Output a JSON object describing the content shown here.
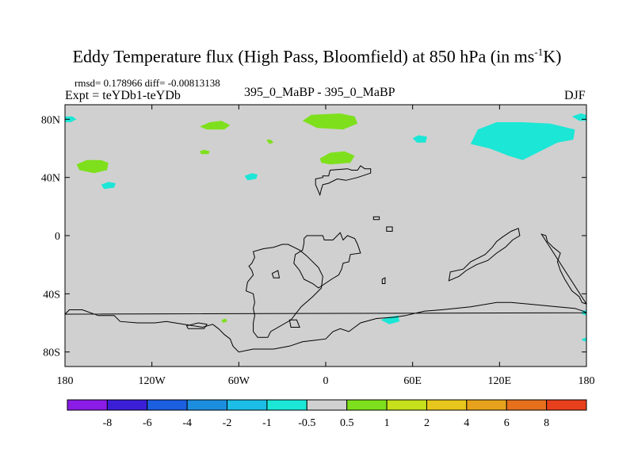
{
  "chart_data": {
    "type": "filled-contour-map",
    "title_main": "Eddy Temperature flux (High Pass, Bloomfield) at 850 hPa (in ms",
    "title_sup": "-1",
    "title_tail": "K)",
    "stats_text": "rmsd= 0.178966 diff= -0.00813138",
    "expt_text": "Expt = teYDb1-teYDb",
    "center_label": "395_0_MaBP - 395_0_MaBP",
    "season": "DJF",
    "x_ticks": [
      {
        "lon": -180,
        "label": "180"
      },
      {
        "lon": -120,
        "label": "120W"
      },
      {
        "lon": -60,
        "label": "60W"
      },
      {
        "lon": 0,
        "label": "0"
      },
      {
        "lon": 60,
        "label": "60E"
      },
      {
        "lon": 120,
        "label": "120E"
      },
      {
        "lon": 180,
        "label": "180"
      }
    ],
    "y_ticks": [
      {
        "lat": 80,
        "label": "80N"
      },
      {
        "lat": 40,
        "label": "40N"
      },
      {
        "lat": 0,
        "label": "0"
      },
      {
        "lat": -40,
        "label": "40S"
      },
      {
        "lat": -80,
        "label": "80S"
      }
    ],
    "xlim": [
      -180,
      180
    ],
    "ylim": [
      -90,
      90
    ],
    "colorbar": {
      "colors": [
        "#8a1ce6",
        "#3a1fd6",
        "#1c5fe0",
        "#1c8ee0",
        "#1cbde6",
        "#1ce6d6",
        "#d0d0d0",
        "#7ee01c",
        "#c6e01c",
        "#e6c61c",
        "#e6a21c",
        "#e6701c",
        "#e6401c"
      ],
      "labels": [
        "-8",
        "-6",
        "-4",
        "-2",
        "-1",
        "-0.5",
        "0.5",
        "1",
        "2",
        "4",
        "6",
        "8"
      ]
    },
    "regions": [
      {
        "name": "green-patch-nw-pacific",
        "color": "#7ee01c",
        "lonlat": [
          [
            -172,
            49
          ],
          [
            -165,
            52
          ],
          [
            -155,
            52
          ],
          [
            -150,
            50
          ],
          [
            -151,
            45
          ],
          [
            -160,
            43
          ],
          [
            -170,
            45
          ]
        ]
      },
      {
        "name": "green-patch-canada",
        "color": "#7ee01c",
        "lonlat": [
          [
            -87,
            75
          ],
          [
            -80,
            78
          ],
          [
            -72,
            79
          ],
          [
            -66,
            76
          ],
          [
            -70,
            73
          ],
          [
            -82,
            73
          ]
        ]
      },
      {
        "name": "green-patch-atlantic",
        "color": "#7ee01c",
        "lonlat": [
          [
            -87,
            58
          ],
          [
            -84,
            59
          ],
          [
            -80,
            58
          ],
          [
            -81,
            56
          ],
          [
            -86,
            56
          ]
        ]
      },
      {
        "name": "green-patch-greenland",
        "color": "#7ee01c",
        "lonlat": [
          [
            -41,
            66
          ],
          [
            -38,
            66
          ],
          [
            -36,
            64
          ],
          [
            -39,
            63
          ]
        ]
      },
      {
        "name": "green-patch-europe",
        "color": "#7ee01c",
        "lonlat": [
          [
            -16,
            79
          ],
          [
            -10,
            83
          ],
          [
            10,
            84
          ],
          [
            20,
            82
          ],
          [
            22,
            77
          ],
          [
            12,
            73
          ],
          [
            -6,
            74
          ]
        ]
      },
      {
        "name": "green-patch-north-atlantic",
        "color": "#7ee01c",
        "lonlat": [
          [
            -4,
            53
          ],
          [
            3,
            57
          ],
          [
            13,
            58
          ],
          [
            20,
            55
          ],
          [
            17,
            50
          ],
          [
            3,
            49
          ],
          [
            -3,
            50
          ]
        ]
      },
      {
        "name": "green-patch-s-atlantic",
        "color": "#7ee01c",
        "lonlat": [
          [
            -72,
            -58
          ],
          [
            -69,
            -57
          ],
          [
            -68,
            -59
          ],
          [
            -71,
            -60
          ]
        ]
      },
      {
        "name": "cyan-patch-far-west",
        "color": "#1ce6d6",
        "lonlat": [
          [
            -180,
            82
          ],
          [
            -175,
            82
          ],
          [
            -172,
            80
          ],
          [
            -176,
            78
          ],
          [
            -180,
            78
          ]
        ]
      },
      {
        "name": "cyan-patch-n-pacific",
        "color": "#1ce6d6",
        "lonlat": [
          [
            -155,
            35
          ],
          [
            -150,
            37
          ],
          [
            -145,
            36
          ],
          [
            -146,
            33
          ],
          [
            -153,
            32
          ]
        ]
      },
      {
        "name": "cyan-patch-n-america",
        "color": "#1ce6d6",
        "lonlat": [
          [
            -56,
            41
          ],
          [
            -51,
            43
          ],
          [
            -47,
            42
          ],
          [
            -48,
            39
          ],
          [
            -54,
            38
          ]
        ]
      },
      {
        "name": "cyan-patch-siberia-small",
        "color": "#1ce6d6",
        "lonlat": [
          [
            60,
            67
          ],
          [
            64,
            69
          ],
          [
            70,
            68
          ],
          [
            69,
            64
          ],
          [
            63,
            64
          ]
        ]
      },
      {
        "name": "cyan-patch-siberia-large",
        "color": "#1ce6d6",
        "lonlat": [
          [
            100,
            63
          ],
          [
            105,
            73
          ],
          [
            118,
            78
          ],
          [
            135,
            78
          ],
          [
            155,
            77
          ],
          [
            172,
            73
          ],
          [
            171,
            66
          ],
          [
            160,
            64
          ],
          [
            148,
            58
          ],
          [
            136,
            52
          ],
          [
            126,
            55
          ],
          [
            113,
            60
          ]
        ]
      },
      {
        "name": "cyan-patch-far-east",
        "color": "#1ce6d6",
        "lonlat": [
          [
            170,
            82
          ],
          [
            176,
            84
          ],
          [
            180,
            83
          ],
          [
            180,
            79
          ],
          [
            175,
            79
          ]
        ]
      },
      {
        "name": "cyan-patch-s-ocean",
        "color": "#1ce6d6",
        "lonlat": [
          [
            38,
            -58
          ],
          [
            43,
            -56
          ],
          [
            50,
            -55
          ],
          [
            51,
            -59
          ],
          [
            44,
            -61
          ]
        ]
      },
      {
        "name": "cyan-patch-e-edge-mid",
        "color": "#1ce6d6",
        "lonlat": [
          [
            177,
            -52
          ],
          [
            180,
            -51
          ],
          [
            180,
            -55
          ],
          [
            177,
            -54
          ]
        ]
      },
      {
        "name": "cyan-patch-e-edge-south",
        "color": "#1ce6d6",
        "lonlat": [
          [
            177,
            -71
          ],
          [
            180,
            -70
          ],
          [
            180,
            -73
          ],
          [
            177,
            -72
          ]
        ]
      }
    ],
    "coastlines": [
      {
        "name": "outline-europe",
        "lonlat": [
          [
            -7,
            35
          ],
          [
            -7,
            39
          ],
          [
            -2,
            40
          ],
          [
            -2,
            41
          ],
          [
            2,
            41
          ],
          [
            3,
            45
          ],
          [
            15,
            46
          ],
          [
            18,
            45
          ],
          [
            22,
            45
          ],
          [
            24,
            48
          ],
          [
            27,
            46
          ],
          [
            31,
            46
          ],
          [
            31,
            43
          ],
          [
            22,
            40
          ],
          [
            14,
            38
          ],
          [
            8,
            39
          ],
          [
            2,
            36
          ],
          [
            -2,
            35
          ],
          [
            -3,
            32
          ],
          [
            -4,
            28
          ]
        ]
      },
      {
        "name": "outline-west-africa",
        "lonlat": [
          [
            -15,
            -2
          ],
          [
            -13,
            0
          ],
          [
            -2,
            0
          ],
          [
            -1,
            -3
          ],
          [
            5,
            -3
          ],
          [
            10,
            2
          ],
          [
            12,
            -3
          ],
          [
            15,
            0
          ],
          [
            20,
            -2
          ],
          [
            22,
            -6
          ],
          [
            24,
            -12
          ],
          [
            17,
            -13
          ],
          [
            16,
            -18
          ],
          [
            12,
            -19
          ],
          [
            11,
            -23
          ],
          [
            9,
            -27
          ],
          [
            4,
            -30
          ],
          [
            -5,
            -36
          ],
          [
            -9,
            -33
          ],
          [
            -15,
            -30
          ],
          [
            -18,
            -24
          ],
          [
            -22,
            -19
          ],
          [
            -21,
            -13
          ],
          [
            -16,
            -10
          ],
          [
            -15,
            -5
          ]
        ]
      },
      {
        "name": "outline-south-america",
        "lonlat": [
          [
            -50,
            -11
          ],
          [
            -49,
            -15
          ],
          [
            -51,
            -19
          ],
          [
            -53,
            -21
          ],
          [
            -51,
            -24
          ],
          [
            -50,
            -27
          ],
          [
            -54,
            -32
          ],
          [
            -55,
            -38
          ],
          [
            -50,
            -40
          ],
          [
            -49,
            -46
          ],
          [
            -50,
            -50
          ],
          [
            -49,
            -55
          ],
          [
            -50,
            -60
          ],
          [
            -50,
            -66
          ],
          [
            -47,
            -70
          ],
          [
            -40,
            -70
          ],
          [
            -38,
            -66
          ],
          [
            -24,
            -58
          ],
          [
            -17,
            -49
          ],
          [
            -9,
            -42
          ],
          [
            -3,
            -36
          ],
          [
            -2,
            -28
          ],
          [
            -5,
            -22
          ],
          [
            -13,
            -14
          ],
          [
            -18,
            -10
          ],
          [
            -26,
            -6
          ],
          [
            -30,
            -6
          ],
          [
            -36,
            -8
          ],
          [
            -43,
            -9
          ]
        ]
      },
      {
        "name": "outline-antarctica",
        "lonlat": [
          [
            -180,
            -54
          ],
          [
            -177,
            -51
          ],
          [
            -168,
            -51
          ],
          [
            -157,
            -55
          ],
          [
            -146,
            -55
          ],
          [
            -142,
            -59
          ],
          [
            -130,
            -60
          ],
          [
            -118,
            -60
          ],
          [
            -110,
            -59
          ],
          [
            -98,
            -61
          ],
          [
            -85,
            -63
          ],
          [
            -78,
            -61
          ],
          [
            -74,
            -64
          ],
          [
            -70,
            -68
          ],
          [
            -66,
            -71
          ],
          [
            -64,
            -76
          ],
          [
            -60,
            -80
          ],
          [
            -50,
            -78
          ],
          [
            -36,
            -78
          ],
          [
            -25,
            -76
          ],
          [
            -16,
            -73
          ],
          [
            -8,
            -72
          ],
          [
            0,
            -71
          ],
          [
            5,
            -66
          ],
          [
            10,
            -64
          ],
          [
            16,
            -66
          ],
          [
            24,
            -60
          ],
          [
            35,
            -57
          ],
          [
            48,
            -56
          ],
          [
            55,
            -55
          ],
          [
            68,
            -52
          ],
          [
            80,
            -51
          ],
          [
            100,
            -49
          ],
          [
            118,
            -46
          ],
          [
            128,
            -46
          ],
          [
            140,
            -47
          ],
          [
            150,
            -48
          ],
          [
            160,
            -49
          ],
          [
            172,
            -50
          ],
          [
            178,
            -52
          ],
          [
            180,
            -53
          ]
        ]
      },
      {
        "name": "outline-asia",
        "lonlat": [
          [
            85,
            -31
          ],
          [
            86,
            -25
          ],
          [
            95,
            -23
          ],
          [
            100,
            -18
          ],
          [
            110,
            -13
          ],
          [
            115,
            -8
          ],
          [
            118,
            -4
          ],
          [
            122,
            -1
          ],
          [
            128,
            3
          ],
          [
            133,
            5
          ],
          [
            134,
            0
          ],
          [
            129,
            -3
          ],
          [
            124,
            -8
          ],
          [
            118,
            -12
          ],
          [
            112,
            -17
          ],
          [
            104,
            -20
          ],
          [
            97,
            -24
          ],
          [
            92,
            -28
          ]
        ]
      },
      {
        "name": "outline-pacific-east",
        "lonlat": [
          [
            149,
            1
          ],
          [
            152,
            0
          ],
          [
            153,
            -4
          ],
          [
            157,
            -8
          ],
          [
            162,
            -12
          ],
          [
            160,
            -18
          ],
          [
            162,
            -24
          ],
          [
            165,
            -30
          ],
          [
            170,
            -38
          ],
          [
            175,
            -42
          ],
          [
            177,
            -46
          ],
          [
            180,
            -47
          ]
        ]
      },
      {
        "name": "outline-islands-1",
        "lonlat": [
          [
            -37,
            -26
          ],
          [
            -33,
            -24
          ],
          [
            -32,
            -29
          ],
          [
            -36,
            -29
          ]
        ]
      },
      {
        "name": "outline-islands-2",
        "lonlat": [
          [
            39,
            -30
          ],
          [
            41,
            -29
          ],
          [
            41,
            -33
          ],
          [
            39,
            -33
          ]
        ]
      },
      {
        "name": "outline-small-n-atl",
        "lonlat": [
          [
            33,
            13
          ],
          [
            37,
            13
          ],
          [
            37,
            11
          ],
          [
            33,
            11
          ]
        ]
      },
      {
        "name": "outline-small-2",
        "lonlat": [
          [
            42,
            6
          ],
          [
            46,
            6
          ],
          [
            46,
            3
          ],
          [
            42,
            3
          ]
        ]
      },
      {
        "name": "outline-small-3",
        "lonlat": [
          [
            -25,
            -58
          ],
          [
            -20,
            -58
          ],
          [
            -18,
            -63
          ],
          [
            -24,
            -63
          ]
        ]
      },
      {
        "name": "outline-small-4",
        "lonlat": [
          [
            -96,
            -62
          ],
          [
            -88,
            -60
          ],
          [
            -82,
            -61
          ],
          [
            -84,
            -64
          ],
          [
            -95,
            -64
          ]
        ]
      }
    ]
  }
}
